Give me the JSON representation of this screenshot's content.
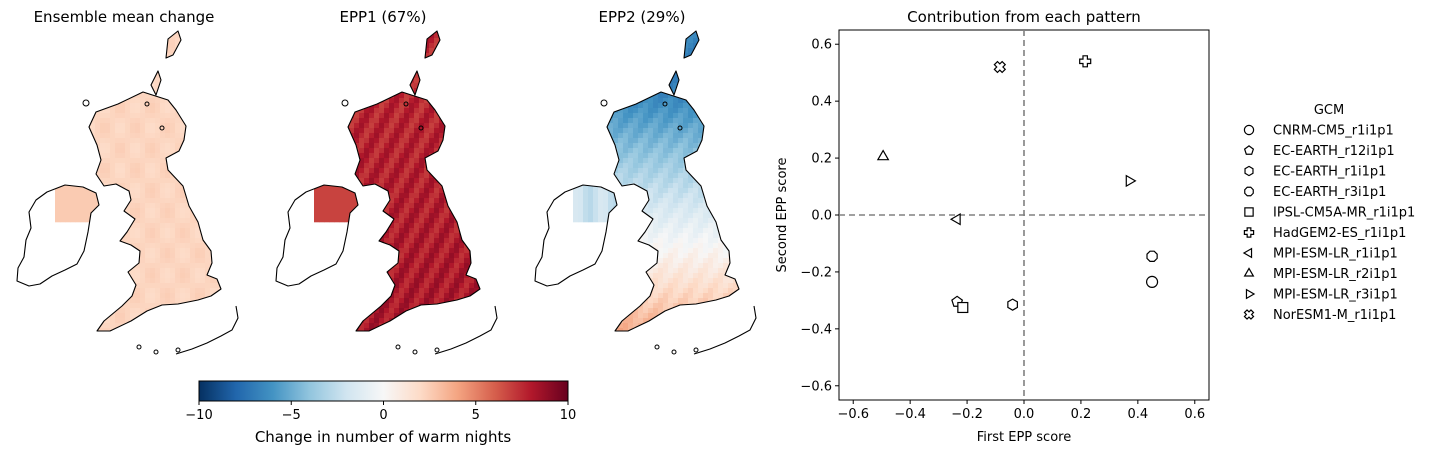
{
  "maps": {
    "panels": [
      {
        "title": "Ensemble mean change",
        "variant": "mean"
      },
      {
        "title": "EPP1 (67%)",
        "variant": "epp1"
      },
      {
        "title": "EPP2 (29%)",
        "variant": "epp2"
      }
    ],
    "colorbar": {
      "label": "Change in number of warm nights",
      "ticks": [
        "−10",
        "−5",
        "0",
        "5",
        "10"
      ],
      "range": [
        -10,
        10
      ],
      "colors": [
        "#053061",
        "#2166ac",
        "#4393c3",
        "#92c5de",
        "#d1e5f0",
        "#f7f7f7",
        "#fddbc7",
        "#f4a582",
        "#d6604d",
        "#b2182b",
        "#67001f"
      ]
    }
  },
  "chart_data": {
    "type": "scatter",
    "title": "Contribution from each pattern",
    "xlabel": "First EPP score",
    "ylabel": "Second EPP score",
    "xlim": [
      -0.65,
      0.65
    ],
    "ylim": [
      -0.65,
      0.65
    ],
    "xticks": [
      -0.6,
      -0.4,
      -0.2,
      0.0,
      0.2,
      0.4,
      0.6
    ],
    "yticks": [
      -0.6,
      -0.4,
      -0.2,
      0.0,
      0.2,
      0.4,
      0.6
    ],
    "xtick_labels": [
      "−0.6",
      "−0.4",
      "−0.2",
      "0.0",
      "0.2",
      "0.4",
      "0.6"
    ],
    "ytick_labels": [
      "−0.6",
      "−0.4",
      "−0.2",
      "0.0",
      "0.2",
      "0.4",
      "0.6"
    ],
    "reference_lines": {
      "x": 0.0,
      "y": 0.0,
      "style": "dashed",
      "color": "#808080"
    },
    "grid": false,
    "legend_title": "GCM",
    "legend_position": "right-outside",
    "points": [
      {
        "name": "CNRM-CM5_r1i1p1",
        "marker": "circle",
        "x": 0.45,
        "y": -0.235
      },
      {
        "name": "EC-EARTH_r12i1p1",
        "marker": "pentagon",
        "x": -0.235,
        "y": -0.305
      },
      {
        "name": "EC-EARTH_r1i1p1",
        "marker": "hexagon",
        "x": -0.04,
        "y": -0.315
      },
      {
        "name": "EC-EARTH_r3i1p1",
        "marker": "octagon",
        "x": 0.45,
        "y": -0.145
      },
      {
        "name": "IPSL-CM5A-MR_r1i1p1",
        "marker": "square",
        "x": -0.215,
        "y": -0.325
      },
      {
        "name": "HadGEM2-ES_r1i1p1",
        "marker": "plus",
        "x": 0.215,
        "y": 0.54
      },
      {
        "name": "MPI-ESM-LR_r1i1p1",
        "marker": "triangle-left",
        "x": -0.235,
        "y": -0.015
      },
      {
        "name": "MPI-ESM-LR_r2i1p1",
        "marker": "triangle-up",
        "x": -0.495,
        "y": 0.205
      },
      {
        "name": "MPI-ESM-LR_r3i1p1",
        "marker": "triangle-right",
        "x": 0.37,
        "y": 0.12
      },
      {
        "name": "NorESM1-M_r1i1p1",
        "marker": "x-thick",
        "x": -0.085,
        "y": 0.52
      }
    ]
  }
}
